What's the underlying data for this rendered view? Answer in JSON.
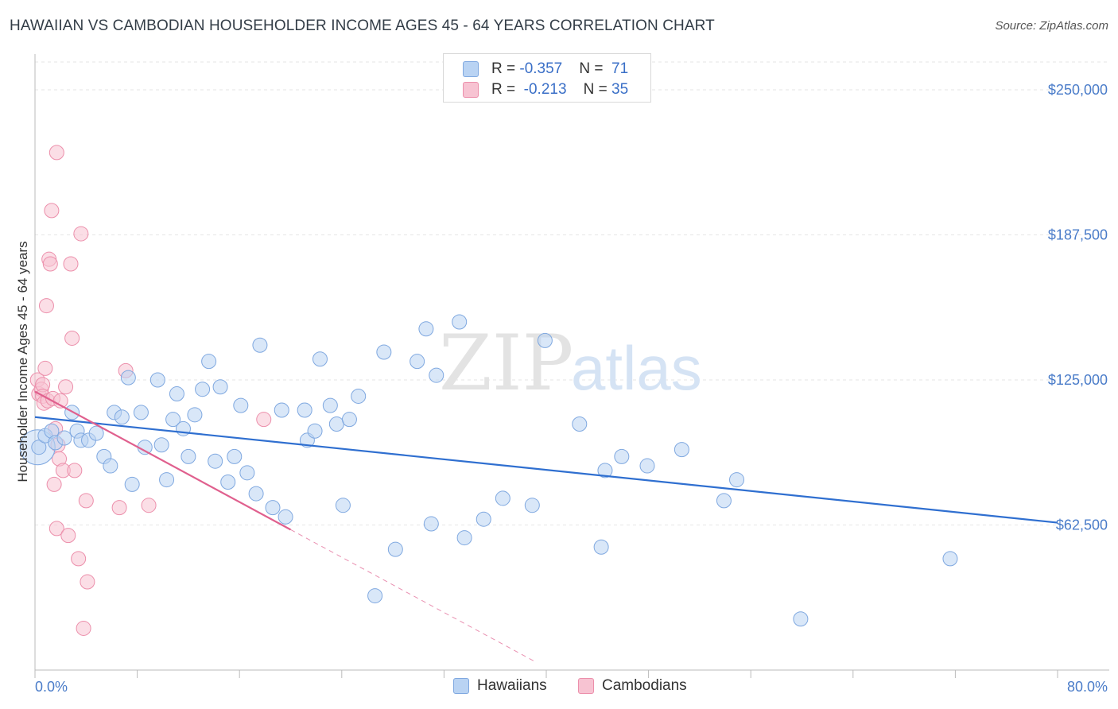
{
  "title": "HAWAIIAN VS CAMBODIAN HOUSEHOLDER INCOME AGES 45 - 64 YEARS CORRELATION CHART",
  "source": "Source: ZipAtlas.com",
  "watermark": {
    "zip": "ZIP",
    "atlas": "atlas"
  },
  "legend": {
    "rows": [
      {
        "r_label": "R = ",
        "r_value": "-0.357",
        "n_label": "N = ",
        "n_value": "71",
        "color": "#b9d3f3",
        "border": "#7fa8e0"
      },
      {
        "r_label": "R = ",
        "r_value": "-0.213",
        "n_label": "N = ",
        "n_value": "35",
        "color": "#f7c3d2",
        "border": "#ec8fab"
      }
    ]
  },
  "bottom_legend": [
    {
      "label": "Hawaiians",
      "color": "#b9d3f3",
      "border": "#7fa8e0"
    },
    {
      "label": "Cambodians",
      "color": "#f7c3d2",
      "border": "#ec8fab"
    }
  ],
  "chart_data": {
    "type": "scatter",
    "title": "HAWAIIAN VS CAMBODIAN HOUSEHOLDER INCOME AGES 45 - 64 YEARS CORRELATION CHART",
    "xlabel": "",
    "ylabel": "Householder Income Ages 45 - 64 years",
    "xlim": [
      0,
      80
    ],
    "ylim": [
      0,
      262000
    ],
    "x_tick_labels": [
      "0.0%",
      "80.0%"
    ],
    "y_ticks": [
      62500,
      125000,
      187500,
      250000
    ],
    "y_tick_labels": [
      "$62,500",
      "$125,000",
      "$187,500",
      "$250,000"
    ],
    "grid": true,
    "legend_position": "top-center",
    "series": [
      {
        "name": "Hawaiians",
        "color": "#7fa8e0",
        "fill": "#b9d3f3",
        "trend": {
          "x": [
            0,
            80
          ],
          "y": [
            109000,
            63500
          ],
          "color": "#2f6fd0"
        },
        "points": [
          [
            0.3,
            96000
          ],
          [
            0.8,
            101000
          ],
          [
            1.3,
            103000
          ],
          [
            1.6,
            98000
          ],
          [
            2.3,
            100000
          ],
          [
            2.9,
            111000
          ],
          [
            3.3,
            103000
          ],
          [
            3.6,
            99000
          ],
          [
            4.2,
            99000
          ],
          [
            4.8,
            102000
          ],
          [
            5.4,
            92000
          ],
          [
            5.9,
            88000
          ],
          [
            6.2,
            111000
          ],
          [
            6.8,
            109000
          ],
          [
            7.3,
            126000
          ],
          [
            7.6,
            80000
          ],
          [
            8.3,
            111000
          ],
          [
            8.6,
            96000
          ],
          [
            9.6,
            125000
          ],
          [
            9.9,
            97000
          ],
          [
            10.3,
            82000
          ],
          [
            10.8,
            108000
          ],
          [
            11.1,
            119000
          ],
          [
            11.6,
            104000
          ],
          [
            12.0,
            92000
          ],
          [
            12.5,
            110000
          ],
          [
            13.1,
            121000
          ],
          [
            13.6,
            133000
          ],
          [
            14.1,
            90000
          ],
          [
            14.5,
            122000
          ],
          [
            15.1,
            81000
          ],
          [
            15.6,
            92000
          ],
          [
            16.1,
            114000
          ],
          [
            16.6,
            85000
          ],
          [
            17.3,
            76000
          ],
          [
            17.6,
            140000
          ],
          [
            18.6,
            70000
          ],
          [
            19.3,
            112000
          ],
          [
            19.6,
            66000
          ],
          [
            21.1,
            112000
          ],
          [
            21.3,
            99000
          ],
          [
            21.9,
            103000
          ],
          [
            22.3,
            134000
          ],
          [
            23.1,
            114000
          ],
          [
            23.6,
            106000
          ],
          [
            24.1,
            71000
          ],
          [
            24.6,
            108000
          ],
          [
            25.3,
            118000
          ],
          [
            26.6,
            32000
          ],
          [
            27.3,
            137000
          ],
          [
            28.2,
            52000
          ],
          [
            29.9,
            133000
          ],
          [
            30.6,
            147000
          ],
          [
            31.0,
            63000
          ],
          [
            31.4,
            127000
          ],
          [
            33.2,
            150000
          ],
          [
            33.6,
            57000
          ],
          [
            35.1,
            65000
          ],
          [
            36.6,
            74000
          ],
          [
            38.9,
            71000
          ],
          [
            39.9,
            142000
          ],
          [
            42.6,
            106000
          ],
          [
            44.3,
            53000
          ],
          [
            44.6,
            86000
          ],
          [
            45.9,
            92000
          ],
          [
            47.9,
            88000
          ],
          [
            50.6,
            95000
          ],
          [
            53.9,
            73000
          ],
          [
            54.9,
            82000
          ],
          [
            59.9,
            22000
          ],
          [
            71.6,
            48000
          ]
        ],
        "large_point": [
          0.2,
          96000
        ]
      },
      {
        "name": "Cambodians",
        "color": "#ec8fab",
        "fill": "#f7c3d2",
        "trend": {
          "x": [
            0,
            20
          ],
          "y": [
            120000,
            60500
          ],
          "color": "#e0608e",
          "dash_to": [
            39,
            4000
          ]
        },
        "points": [
          [
            0.2,
            125000
          ],
          [
            0.3,
            119000
          ],
          [
            0.5,
            121000
          ],
          [
            0.6,
            123000
          ],
          [
            0.6,
            118000
          ],
          [
            0.7,
            115000
          ],
          [
            0.8,
            130000
          ],
          [
            0.9,
            157000
          ],
          [
            1.0,
            116000
          ],
          [
            1.1,
            177000
          ],
          [
            1.2,
            175000
          ],
          [
            1.3,
            198000
          ],
          [
            1.4,
            117000
          ],
          [
            1.5,
            80000
          ],
          [
            1.6,
            104000
          ],
          [
            1.7,
            61000
          ],
          [
            1.7,
            223000
          ],
          [
            1.8,
            97000
          ],
          [
            1.9,
            91000
          ],
          [
            2.0,
            116000
          ],
          [
            2.2,
            86000
          ],
          [
            2.4,
            122000
          ],
          [
            2.6,
            58000
          ],
          [
            2.8,
            175000
          ],
          [
            2.9,
            143000
          ],
          [
            3.1,
            86000
          ],
          [
            3.4,
            48000
          ],
          [
            3.6,
            188000
          ],
          [
            3.8,
            18000
          ],
          [
            4.0,
            73000
          ],
          [
            4.1,
            38000
          ],
          [
            6.6,
            70000
          ],
          [
            7.1,
            129000
          ],
          [
            8.9,
            71000
          ],
          [
            17.9,
            108000
          ]
        ]
      }
    ]
  }
}
